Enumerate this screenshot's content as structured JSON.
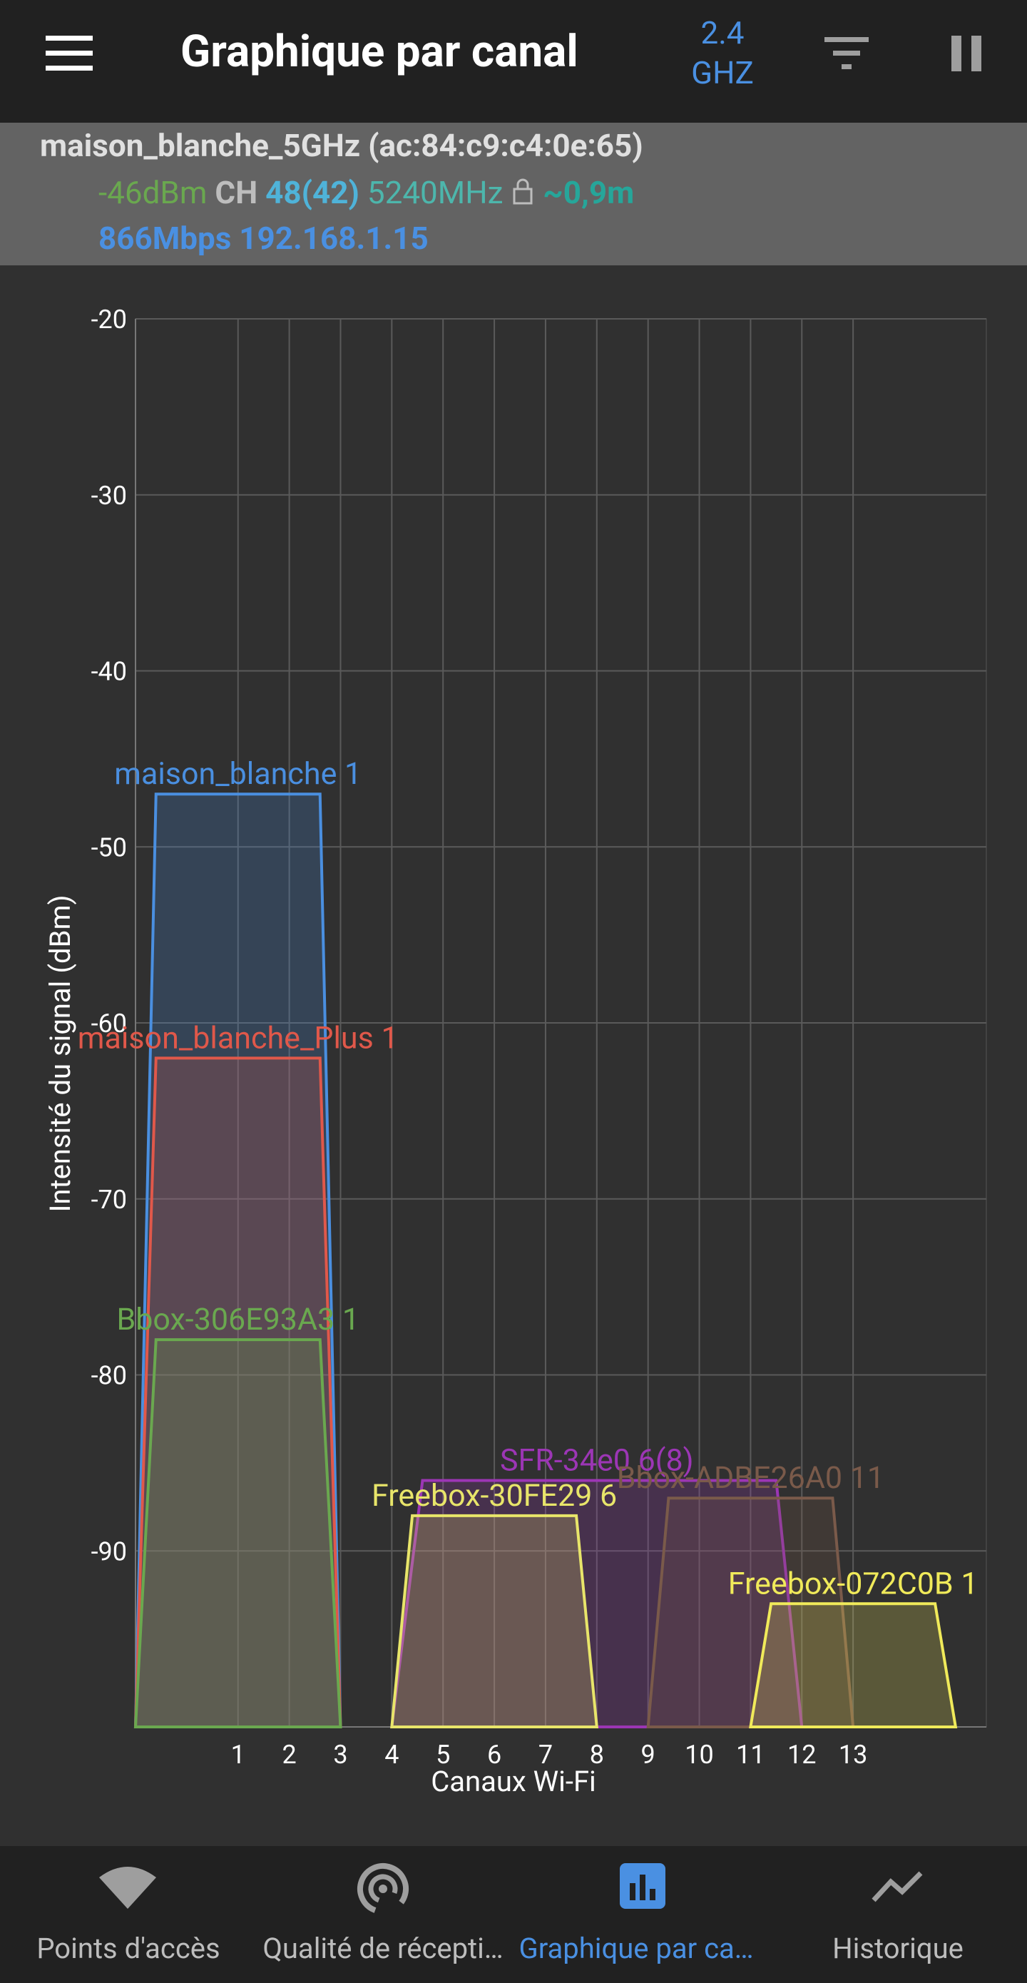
{
  "app_bar": {
    "title": "Graphique par canal",
    "band_value": "2.4",
    "band_unit": "GHZ"
  },
  "connection": {
    "ssid": "maison_blanche_5GHz (ac:84:c9:c4:0e:65)",
    "level": "-46dBm",
    "ch_label": "CH",
    "channel": "48(42)",
    "frequency": "5240MHz",
    "distance": "~0,9m",
    "speed": "866Mbps",
    "ip": "192.168.1.15"
  },
  "chart_data": {
    "type": "area",
    "y_label": "Intensité du signal (dBm)",
    "x_label": "Canaux Wi-Fi",
    "xlim": [
      -1,
      15.6
    ],
    "xticks": [
      1,
      2,
      3,
      4,
      5,
      6,
      7,
      8,
      9,
      10,
      11,
      12,
      13
    ],
    "ylim": [
      -100,
      -20
    ],
    "yticks": [
      -20,
      -30,
      -40,
      -50,
      -60,
      -70,
      -80,
      -90
    ],
    "grid": true,
    "series": [
      {
        "name": "maison_blanche 1",
        "color": "#4a8fe0",
        "x": [
          -1,
          -0.6,
          2.6,
          3
        ],
        "values": [
          -100,
          -47,
          -47,
          -100
        ]
      },
      {
        "name": "maison_blanche_Plus 1",
        "color": "#e0584a",
        "x": [
          -1,
          -0.6,
          2.6,
          3
        ],
        "values": [
          -100,
          -62,
          -62,
          -100
        ]
      },
      {
        "name": "Bbox-306E93A3 1",
        "color": "#6aa84f",
        "x": [
          -1,
          -0.6,
          2.6,
          3
        ],
        "values": [
          -100,
          -78,
          -78,
          -100
        ]
      },
      {
        "name": "SFR-34e0 6(8)",
        "color": "#9c36b5",
        "x": [
          4,
          4.6,
          11.5,
          12
        ],
        "values": [
          -100,
          -86,
          -86,
          -100
        ]
      },
      {
        "name": "Freebox-30FE29 6",
        "color": "#e8e56a",
        "x": [
          4,
          4.4,
          7.6,
          8
        ],
        "values": [
          -100,
          -88,
          -88,
          -100
        ]
      },
      {
        "name": "Bbox-ADBE26A0 11",
        "color": "#7a5a4a",
        "x": [
          9,
          9.4,
          12.6,
          13
        ],
        "values": [
          -100,
          -87,
          -87,
          -100
        ]
      },
      {
        "name": "Freebox-072C0B 1",
        "color": "#f0ea5a",
        "x": [
          11,
          11.4,
          14.6,
          15
        ],
        "values": [
          -100,
          -93,
          -93,
          -100
        ]
      }
    ]
  },
  "nav": {
    "items": [
      "Points d'accès",
      "Qualité de récepti…",
      "Graphique par ca…",
      "Historique"
    ]
  }
}
